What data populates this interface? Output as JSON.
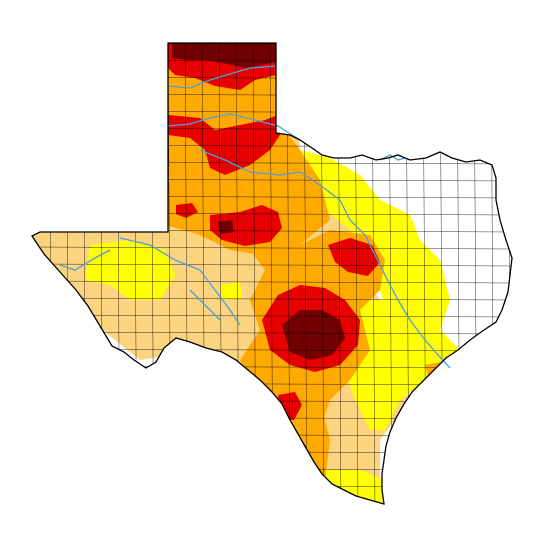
{
  "map": {
    "region": "Texas",
    "kind": "drought intensity map",
    "colors": {
      "background": "#ffffff",
      "none": "#ffffff",
      "D0": "#ffff00",
      "D1": "#fcd37f",
      "D2": "#ffaa00",
      "D3": "#e60000",
      "D4": "#730000",
      "county_lines": "#000000",
      "rivers": "#4e9fd6"
    },
    "levels": [
      "none",
      "D0",
      "D1",
      "D2",
      "D3",
      "D4"
    ]
  }
}
